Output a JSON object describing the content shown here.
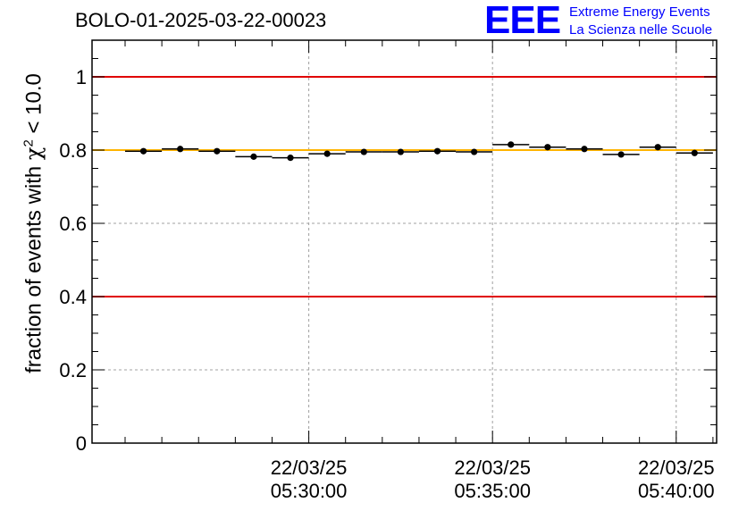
{
  "title": "BOLO-01-2025-03-22-00023",
  "logo": {
    "mark": "EEE",
    "line1": "Extreme Energy Events",
    "line2": "La Scienza nelle Scuole"
  },
  "colors": {
    "limit_line": "#e00000",
    "mean_line": "#ffb400",
    "points": "#000000",
    "grid": "#a0a0a0",
    "logo": "#0000ff"
  },
  "chart_data": {
    "type": "scatter",
    "title": "BOLO-01-2025-03-22-00023",
    "ylabel": "fraction of events with χ² < 10.0",
    "ylabel_parts": {
      "prefix": "fraction of events with ",
      "chi": "χ",
      "sup": "2",
      "suffix": " < 10.0"
    },
    "xlabel": "",
    "ylim": [
      0,
      1.1
    ],
    "y_ticks": [
      "0",
      "0.2",
      "0.4",
      "0.6",
      "0.8",
      "1"
    ],
    "y_tick_values": [
      0,
      0.2,
      0.4,
      0.6,
      0.8,
      1.0
    ],
    "x_axis": {
      "unit": "minutes",
      "range": [
        -5.9,
        11.1
      ],
      "major_ticks": [
        {
          "t": 0,
          "date": "22/03/25",
          "time": "05:30:00"
        },
        {
          "t": 5,
          "date": "22/03/25",
          "time": "05:35:00"
        },
        {
          "t": 10,
          "date": "22/03/25",
          "time": "05:40:00"
        }
      ],
      "minor_step": 1
    },
    "reference_lines": [
      {
        "name": "upper-limit",
        "value": 1.0
      },
      {
        "name": "lower-limit",
        "value": 0.4
      },
      {
        "name": "mean",
        "value": 0.8
      }
    ],
    "series": [
      {
        "name": "fraction",
        "half_width": 0.5,
        "points": [
          {
            "t": -4.5,
            "y": 0.797
          },
          {
            "t": -3.5,
            "y": 0.803
          },
          {
            "t": -2.5,
            "y": 0.797
          },
          {
            "t": -1.5,
            "y": 0.782
          },
          {
            "t": -0.5,
            "y": 0.779
          },
          {
            "t": 0.5,
            "y": 0.79
          },
          {
            "t": 1.5,
            "y": 0.795
          },
          {
            "t": 2.5,
            "y": 0.795
          },
          {
            "t": 3.5,
            "y": 0.797
          },
          {
            "t": 4.5,
            "y": 0.795
          },
          {
            "t": 5.5,
            "y": 0.815
          },
          {
            "t": 6.5,
            "y": 0.808
          },
          {
            "t": 7.5,
            "y": 0.803
          },
          {
            "t": 8.5,
            "y": 0.788
          },
          {
            "t": 9.5,
            "y": 0.808
          },
          {
            "t": 10.5,
            "y": 0.792
          }
        ]
      }
    ]
  }
}
